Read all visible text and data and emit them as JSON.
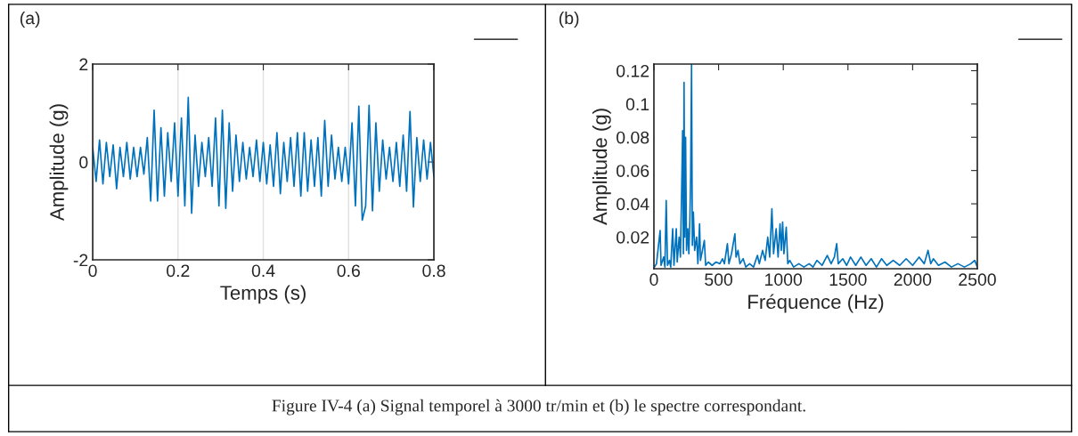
{
  "chart_data": [
    {
      "type": "line",
      "xlabel": "Temps (s)",
      "ylabel": "Amplitude (g)",
      "annotations": [
        "(a)",
        "Figure IV-4 (a) Signal temporel à 3000 tr/min et (b) le spectre correspondant."
      ],
      "xlim": [
        0,
        0.8
      ],
      "ylim": [
        -2,
        2
      ],
      "xticks": [
        0,
        0.2,
        0.4,
        0.6,
        0.8
      ],
      "yticks": [
        -2,
        0,
        2
      ],
      "grid": "x",
      "series": [
        {
          "color": "#0072bd",
          "x": [
            0.0,
            0.008,
            0.016,
            0.024,
            0.032,
            0.04,
            0.048,
            0.056,
            0.064,
            0.072,
            0.08,
            0.088,
            0.096,
            0.104,
            0.112,
            0.12,
            0.128,
            0.136,
            0.144,
            0.152,
            0.16,
            0.168,
            0.176,
            0.184,
            0.192,
            0.2,
            0.208,
            0.216,
            0.224,
            0.232,
            0.24,
            0.248,
            0.256,
            0.264,
            0.272,
            0.28,
            0.288,
            0.296,
            0.304,
            0.312,
            0.32,
            0.328,
            0.336,
            0.344,
            0.352,
            0.36,
            0.368,
            0.376,
            0.384,
            0.392,
            0.4,
            0.408,
            0.416,
            0.424,
            0.432,
            0.44,
            0.448,
            0.456,
            0.464,
            0.472,
            0.48,
            0.488,
            0.496,
            0.504,
            0.512,
            0.52,
            0.528,
            0.536,
            0.544,
            0.552,
            0.56,
            0.568,
            0.576,
            0.584,
            0.592,
            0.6,
            0.608,
            0.616,
            0.624,
            0.632,
            0.64,
            0.648,
            0.656,
            0.664,
            0.672,
            0.68,
            0.688,
            0.696,
            0.704,
            0.712,
            0.72,
            0.728,
            0.736,
            0.744,
            0.752,
            0.76,
            0.768,
            0.776,
            0.784,
            0.792,
            0.8
          ],
          "values": [
            0.3,
            -0.4,
            0.45,
            -0.45,
            0.4,
            -0.3,
            0.35,
            -0.55,
            0.3,
            -0.3,
            0.4,
            -0.35,
            0.3,
            -0.3,
            0.3,
            -0.25,
            0.5,
            -0.8,
            1.06,
            -0.8,
            0.7,
            -0.7,
            0.6,
            -0.4,
            0.8,
            -0.7,
            0.9,
            -0.9,
            1.32,
            -1.05,
            0.55,
            -0.5,
            0.4,
            -0.3,
            0.5,
            -0.5,
            0.9,
            -0.9,
            1.06,
            -0.95,
            0.8,
            -0.6,
            0.55,
            -0.4,
            0.4,
            -0.35,
            0.3,
            -0.3,
            0.45,
            -0.4,
            0.4,
            -0.45,
            0.35,
            -0.5,
            0.6,
            -0.65,
            0.4,
            -0.4,
            0.5,
            -0.5,
            0.6,
            -0.7,
            0.6,
            -0.6,
            0.45,
            -0.5,
            0.5,
            -0.7,
            0.85,
            -0.5,
            0.55,
            -0.35,
            0.3,
            -0.4,
            0.3,
            -0.45,
            0.8,
            -0.9,
            1.14,
            -1.19,
            -0.9,
            1.16,
            -1.0,
            0.8,
            -0.6,
            0.45,
            -0.35,
            0.3,
            -0.4,
            0.4,
            -0.5,
            0.55,
            -0.6,
            1.03,
            -0.92,
            0.5,
            -0.4,
            0.45,
            -0.35,
            0.4,
            -0.3
          ]
        }
      ]
    },
    {
      "type": "line",
      "xlabel": "Fréquence (Hz)",
      "ylabel": "Amplitude (g)",
      "annotations": [
        "(b)"
      ],
      "xlim": [
        0,
        2500
      ],
      "ylim": [
        0.001,
        0.124
      ],
      "xticks": [
        0,
        500,
        1000,
        1500,
        2000,
        2500
      ],
      "yticks": [
        0.02,
        0.04,
        0.06,
        0.08,
        0.1,
        0.12
      ],
      "grid": false,
      "series": [
        {
          "color": "#0072bd",
          "x": [
            0,
            20,
            48,
            55,
            75,
            85,
            95,
            105,
            120,
            130,
            145,
            155,
            173,
            180,
            195,
            205,
            215,
            222,
            228,
            233,
            238,
            245,
            252,
            262,
            270,
            278,
            284,
            291,
            297,
            305,
            315,
            330,
            340,
            353,
            360,
            375,
            390,
            400,
            420,
            450,
            480,
            510,
            530,
            545,
            568,
            580,
            600,
            626,
            635,
            650,
            665,
            690,
            710,
            740,
            770,
            800,
            815,
            840,
            860,
            880,
            895,
            912,
            925,
            945,
            960,
            975,
            985,
            995,
            1005,
            1023,
            1035,
            1050,
            1080,
            1120,
            1160,
            1200,
            1230,
            1260,
            1300,
            1340,
            1370,
            1395,
            1413,
            1425,
            1460,
            1490,
            1520,
            1560,
            1600,
            1640,
            1680,
            1720,
            1760,
            1800,
            1850,
            1900,
            1950,
            2000,
            2050,
            2090,
            2119,
            2140,
            2160,
            2200,
            2250,
            2300,
            2350,
            2400,
            2450,
            2480,
            2500
          ],
          "values": [
            0.0015,
            0.004,
            0.024,
            0.003,
            0.008,
            0.002,
            0.042,
            0.003,
            0.006,
            0.002,
            0.025,
            0.003,
            0.025,
            0.005,
            0.02,
            0.008,
            0.05,
            0.084,
            0.01,
            0.113,
            0.02,
            0.08,
            0.012,
            0.025,
            0.01,
            0.03,
            0.056,
            0.124,
            0.015,
            0.035,
            0.012,
            0.02,
            0.004,
            0.028,
            0.006,
            0.012,
            0.018,
            0.003,
            0.005,
            0.003,
            0.005,
            0.004,
            0.007,
            0.004,
            0.016,
            0.004,
            0.01,
            0.022,
            0.008,
            0.012,
            0.004,
            0.007,
            0.002,
            0.004,
            0.002,
            0.009,
            0.004,
            0.012,
            0.006,
            0.02,
            0.008,
            0.037,
            0.01,
            0.025,
            0.008,
            0.028,
            0.012,
            0.029,
            0.01,
            0.026,
            0.004,
            0.006,
            0.002,
            0.004,
            0.002,
            0.004,
            0.002,
            0.006,
            0.003,
            0.009,
            0.004,
            0.008,
            0.016,
            0.004,
            0.007,
            0.003,
            0.008,
            0.003,
            0.008,
            0.003,
            0.007,
            0.002,
            0.007,
            0.003,
            0.006,
            0.003,
            0.007,
            0.003,
            0.008,
            0.004,
            0.012,
            0.004,
            0.007,
            0.003,
            0.005,
            0.002,
            0.004,
            0.002,
            0.004,
            0.006,
            0.002
          ]
        }
      ]
    }
  ]
}
